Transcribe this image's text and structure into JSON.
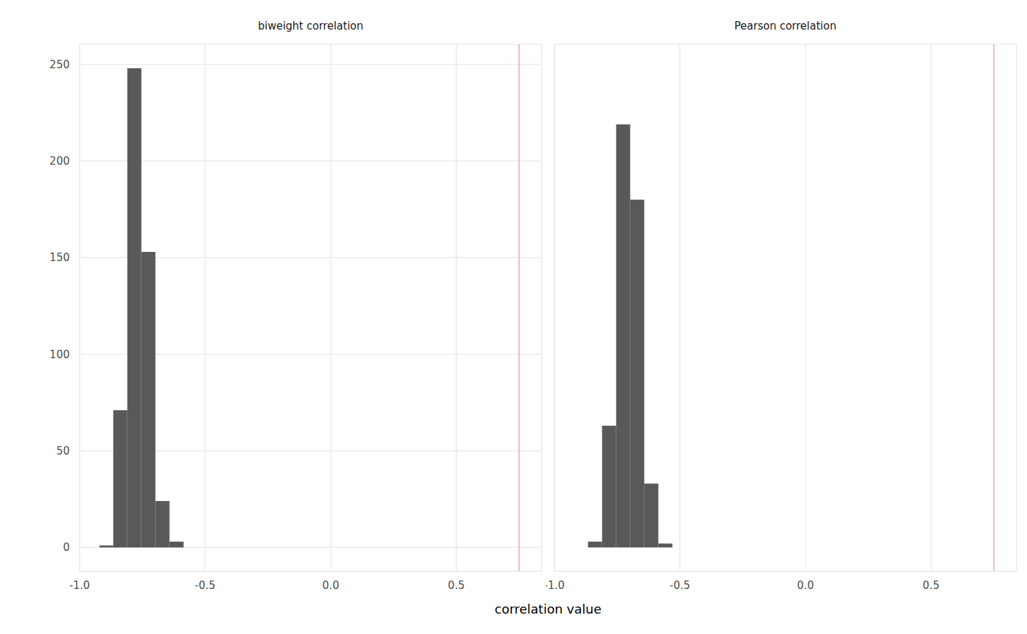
{
  "chart_data": {
    "type": "histogram",
    "xlabel": "correlation value",
    "color": "#595959",
    "grid": true,
    "xlim": [
      -1.0,
      0.84
    ],
    "xticks": [
      {
        "value": -1.0,
        "label": "-1.0"
      },
      {
        "value": -0.5,
        "label": "-0.5"
      },
      {
        "value": 0.0,
        "label": "0.0"
      },
      {
        "value": 0.5,
        "label": "0.5"
      }
    ],
    "ylim": [
      -12.4,
      260.4
    ],
    "yticks": [
      0,
      50,
      100,
      150,
      200,
      250
    ],
    "reference_line": {
      "x": 0.75,
      "color": "#f7b6c2"
    },
    "panels": [
      {
        "title": "biweight correlation",
        "bins": [
          -0.921,
          -0.866,
          -0.81,
          -0.754,
          -0.698,
          -0.642,
          -0.586
        ],
        "counts": [
          1,
          71,
          248,
          153,
          24,
          3
        ]
      },
      {
        "title": "Pearson correlation",
        "bins": [
          -0.866,
          -0.81,
          -0.754,
          -0.698,
          -0.642,
          -0.586,
          -0.53
        ],
        "counts": [
          3,
          63,
          219,
          180,
          33,
          2
        ]
      }
    ]
  }
}
